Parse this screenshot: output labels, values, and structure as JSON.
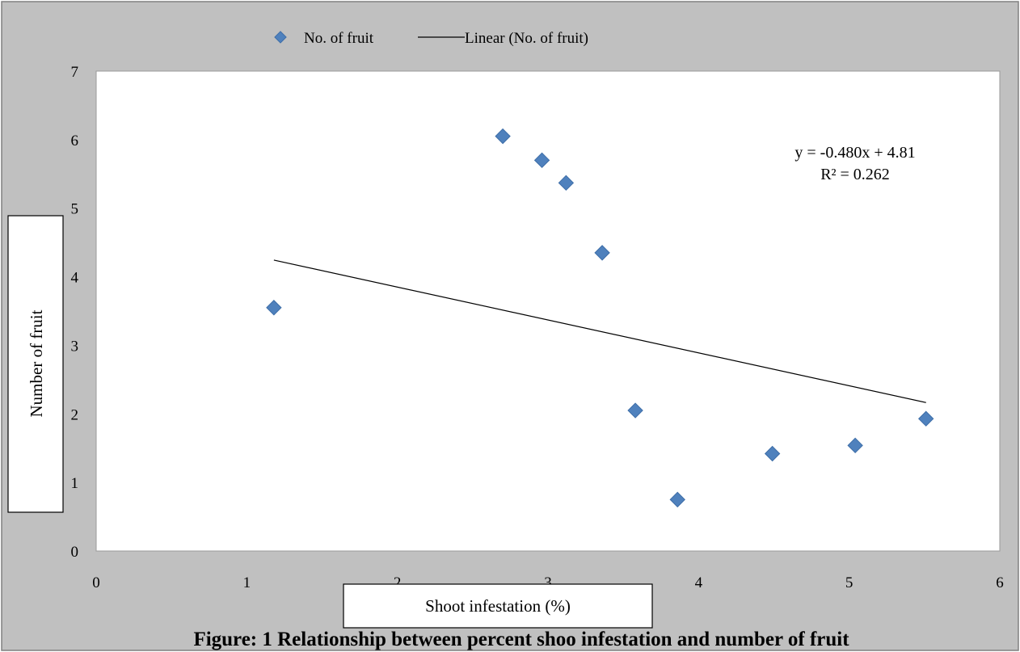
{
  "chart_data": {
    "type": "scatter",
    "title": "",
    "caption": "Figure: 1 Relationship between percent shoo infestation and number of fruit",
    "xlabel": "Shoot infestation (%)",
    "ylabel": "Number of fruit",
    "xlim": [
      0,
      6
    ],
    "ylim": [
      0,
      7
    ],
    "x_ticks": [
      "0",
      "1",
      "2",
      "3",
      "4",
      "5",
      "6"
    ],
    "y_ticks": [
      "0",
      "1",
      "2",
      "3",
      "4",
      "5",
      "6",
      "7"
    ],
    "grid": false,
    "legend_position": "top",
    "series": [
      {
        "name": "No. of fruit",
        "color": "#4f81bd",
        "marker": "diamond",
        "points": [
          {
            "x": 1.18,
            "y": 3.55
          },
          {
            "x": 2.7,
            "y": 6.05
          },
          {
            "x": 2.96,
            "y": 5.7
          },
          {
            "x": 3.12,
            "y": 5.37
          },
          {
            "x": 3.36,
            "y": 4.35
          },
          {
            "x": 3.58,
            "y": 2.05
          },
          {
            "x": 3.86,
            "y": 0.75
          },
          {
            "x": 4.49,
            "y": 1.42
          },
          {
            "x": 5.04,
            "y": 1.54
          },
          {
            "x": 5.51,
            "y": 1.93
          }
        ]
      }
    ],
    "trendline": {
      "name": "Linear (No. of fruit)",
      "slope": -0.48,
      "intercept": 4.81,
      "x_range": [
        1.18,
        5.51
      ],
      "equation": "y = -0.480x + 4.81",
      "r_squared": "R² = 0.262"
    }
  }
}
